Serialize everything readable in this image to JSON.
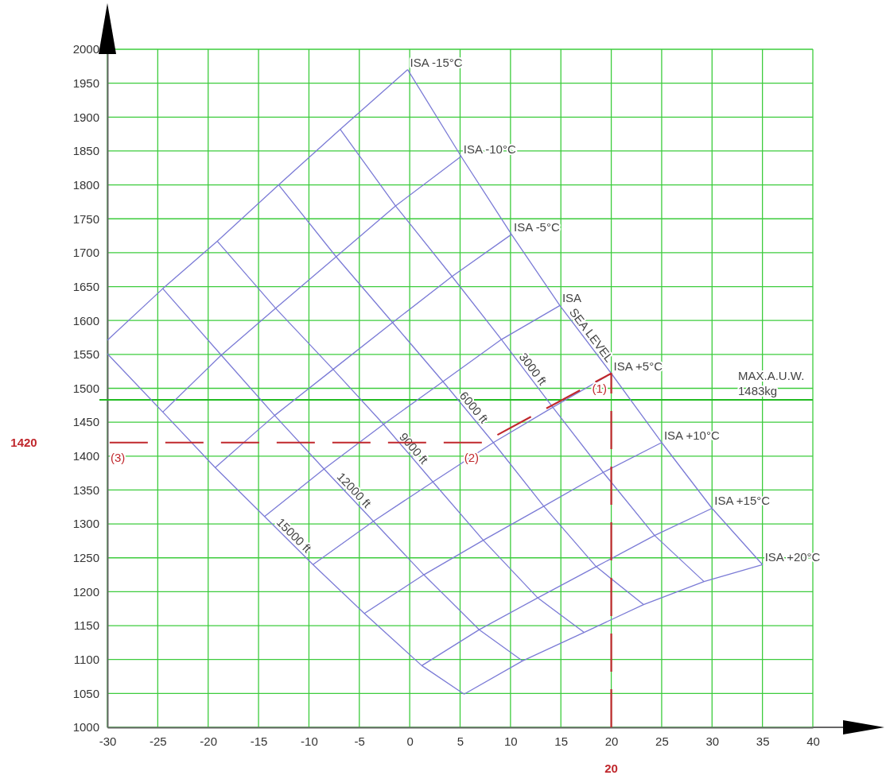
{
  "chart_data": {
    "type": "line",
    "xlim": [
      -30,
      40
    ],
    "xticks": [
      -30,
      -25,
      -20,
      -15,
      -10,
      -5,
      0,
      5,
      10,
      15,
      20,
      25,
      30,
      35,
      40
    ],
    "ylim": [
      1000,
      2000
    ],
    "yticks": [
      1000,
      1050,
      1100,
      1150,
      1200,
      1250,
      1300,
      1350,
      1400,
      1450,
      1500,
      1550,
      1600,
      1650,
      1700,
      1750,
      1800,
      1850,
      1900,
      1950,
      2000
    ],
    "grid": true,
    "series": [
      {
        "name": "ISA -15°C",
        "color": "#7b7bd6",
        "x": [
          -30,
          -24.5,
          -19.1,
          -13.0,
          -6.9,
          -0.2
        ],
        "values": [
          1571,
          1647,
          1717,
          1800,
          1882,
          1970
        ]
      },
      {
        "name": "ISA -10°C",
        "color": "#7b7bd6",
        "x": [
          -24.5,
          -18.7,
          -13.3,
          -7.3,
          -1.4,
          5.1
        ],
        "values": [
          1465,
          1549,
          1618,
          1694,
          1769,
          1842
        ]
      },
      {
        "name": "ISA -5°C",
        "color": "#7b7bd6",
        "x": [
          -19.3,
          -13.4,
          -7.6,
          -1.7,
          4.2,
          10.1
        ],
        "values": [
          1383,
          1460,
          1528,
          1597,
          1665,
          1727
        ]
      },
      {
        "name": "ISA",
        "color": "#7b7bd6",
        "x": [
          -14.4,
          -8.5,
          -2.6,
          3.3,
          9.1,
          14.9
        ],
        "values": [
          1311,
          1381,
          1447,
          1510,
          1572,
          1622
        ]
      },
      {
        "name": "ISA +5°C",
        "color": "#7b7bd6",
        "x": [
          -9.6,
          -3.6,
          2.3,
          8.3,
          14.2,
          20
        ],
        "values": [
          1240,
          1304,
          1362,
          1420,
          1472,
          1522
        ]
      },
      {
        "name": "ISA +10°C",
        "color": "#7b7bd6",
        "x": [
          -4.5,
          1.4,
          7.3,
          13.3,
          19.2,
          25
        ],
        "values": [
          1168,
          1225,
          1276,
          1326,
          1376,
          1420
        ]
      },
      {
        "name": "ISA +15°C",
        "color": "#7b7bd6",
        "x": [
          1.2,
          6.9,
          12.7,
          18.5,
          24.3,
          30
        ],
        "values": [
          1091,
          1144,
          1191,
          1237,
          1283,
          1323
        ]
      },
      {
        "name": "ISA +20°C",
        "color": "#7b7bd6",
        "x": [
          5.4,
          11.2,
          17.3,
          23.2,
          29.2,
          35
        ],
        "values": [
          1049,
          1098,
          1140,
          1181,
          1215,
          1240
        ]
      },
      {
        "name": "SEA LEVEL",
        "color": "#7b7bd6",
        "x": [
          -0.2,
          5.1,
          10.1,
          14.9,
          20,
          25,
          30,
          35
        ],
        "values": [
          1970,
          1842,
          1727,
          1622,
          1522,
          1420,
          1323,
          1240
        ]
      },
      {
        "name": "3000 ft",
        "color": "#7b7bd6",
        "x": [
          -6.9,
          -1.4,
          4.2,
          9.1,
          14.2,
          19.2,
          24.3,
          29.2
        ],
        "values": [
          1882,
          1769,
          1665,
          1572,
          1472,
          1376,
          1283,
          1215
        ]
      },
      {
        "name": "6000 ft",
        "color": "#7b7bd6",
        "x": [
          -13.0,
          -7.3,
          -1.7,
          3.3,
          8.3,
          13.3,
          18.5,
          23.2
        ],
        "values": [
          1800,
          1694,
          1597,
          1510,
          1420,
          1326,
          1237,
          1181
        ]
      },
      {
        "name": "9000 ft",
        "color": "#7b7bd6",
        "x": [
          -19.1,
          -13.3,
          -7.6,
          -2.6,
          2.3,
          7.3,
          12.7,
          17.3
        ],
        "values": [
          1717,
          1618,
          1528,
          1447,
          1362,
          1276,
          1191,
          1140
        ]
      },
      {
        "name": "12000 ft",
        "color": "#7b7bd6",
        "x": [
          -24.5,
          -18.7,
          -13.4,
          -8.5,
          -3.6,
          1.4,
          6.9,
          11.2
        ],
        "values": [
          1647,
          1549,
          1460,
          1381,
          1304,
          1225,
          1144,
          1098
        ]
      },
      {
        "name": "15000 ft",
        "color": "#7b7bd6",
        "x": [
          -30,
          -24.5,
          -19.3,
          -14.4,
          -9.6,
          -4.5,
          1.2,
          5.4
        ],
        "values": [
          1551,
          1465,
          1383,
          1311,
          1240,
          1168,
          1091,
          1049
        ]
      },
      {
        "color": "#c0282d",
        "line_style": "dashed",
        "x": [
          20,
          20,
          7.3,
          -30
        ],
        "values": [
          1000,
          1522,
          1420,
          1420
        ]
      }
    ],
    "ref_lines": [
      {
        "axis": "y",
        "value": 1483,
        "label": "MAX.A.U.W.\n1483kg",
        "color": "#22bb22"
      }
    ],
    "annotations": [
      {
        "text": "(1)",
        "x": 20,
        "y": 1522
      },
      {
        "text": "(2)",
        "x": 7.3,
        "y": 1420
      },
      {
        "text": "(3)",
        "x": -30,
        "y": 1420
      },
      "1420",
      "20"
    ]
  }
}
